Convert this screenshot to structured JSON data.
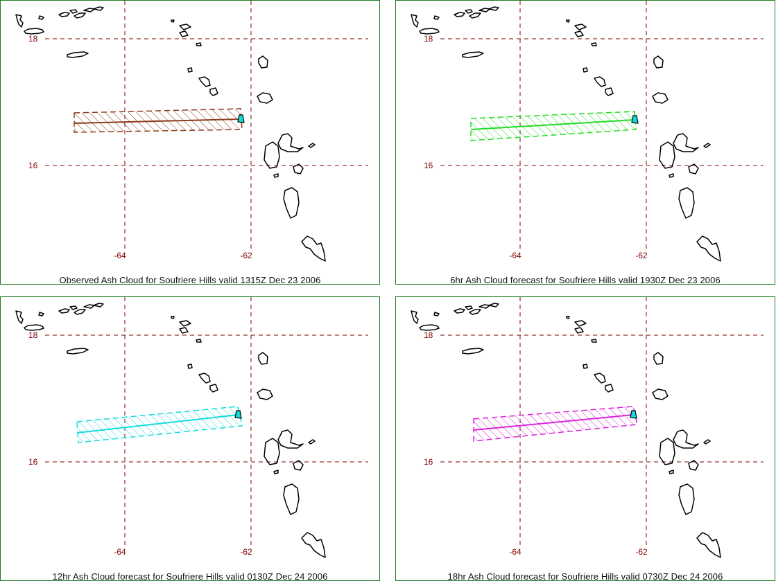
{
  "panels": [
    {
      "caption": "Observed Ash Cloud for Soufriere  Hills valid 1315Z Dec 23 2006",
      "color": "#8b3a1a"
    },
    {
      "caption": "6hr Ash Cloud forecast for Soufriere  Hills valid 1930Z Dec 23 2006",
      "color": "#22dd22"
    },
    {
      "caption": "12hr Ash Cloud forecast for Soufriere  Hills valid 0130Z Dec 24 2006",
      "color": "#11dddd"
    },
    {
      "caption": "18hr Ash Cloud forecast for Soufriere  Hills valid 0730Z Dec 24 2006",
      "color": "#dd22dd"
    }
  ],
  "grid": {
    "lat_labels": [
      "18",
      "16"
    ],
    "lon_labels": [
      "-64",
      "-62"
    ],
    "grid_color": "#800000"
  },
  "volcano": {
    "name_color": "#11dddd"
  }
}
